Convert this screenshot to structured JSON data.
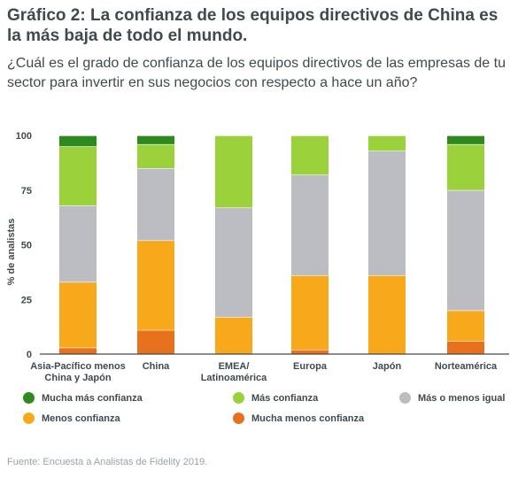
{
  "title": "Gráfico 2: La confianza de los equipos directivos de China es la más baja de todo el mundo.",
  "subtitle": "¿Cuál es el grado de confianza de los equipos directivos de las empresas de tu sector para invertir en sus negocios con respecto a hace un año?",
  "source": "Fuente: Encuesta a Analistas de Fidelity 2019.",
  "chart_data": {
    "type": "bar",
    "stacked": true,
    "ylabel": "% de analistas",
    "ylim": [
      0,
      100
    ],
    "yticks": [
      "0",
      "25",
      "50",
      "75",
      "100"
    ],
    "grid": false,
    "legend_position": "bottom",
    "categories": [
      [
        "Asia-Pacífico menos",
        "China y Japón"
      ],
      [
        "China"
      ],
      [
        "EMEA/",
        "Latinoamérica"
      ],
      [
        "Europa"
      ],
      [
        "Japón"
      ],
      [
        "Norteamérica"
      ]
    ],
    "series": [
      {
        "name": "Mucha menos confianza",
        "color": "#e8711e",
        "values": [
          3,
          11,
          0,
          2,
          0,
          6
        ]
      },
      {
        "name": "Menos confianza",
        "color": "#f7a81b",
        "values": [
          30,
          41,
          17,
          34,
          36,
          14
        ]
      },
      {
        "name": "Más o menos igual",
        "color": "#bcbcc3",
        "values": [
          35,
          33,
          50,
          46,
          57,
          55
        ]
      },
      {
        "name": "Más confianza",
        "color": "#9bd13a",
        "values": [
          27,
          11,
          33,
          18,
          7,
          21
        ]
      },
      {
        "name": "Mucha más confianza",
        "color": "#2e8a1f",
        "values": [
          5,
          4,
          0,
          0,
          0,
          4
        ]
      }
    ],
    "legend_order": [
      "Mucha más confianza",
      "Más confianza",
      "Más o menos igual",
      "Menos confianza",
      "Mucha menos confianza"
    ]
  }
}
